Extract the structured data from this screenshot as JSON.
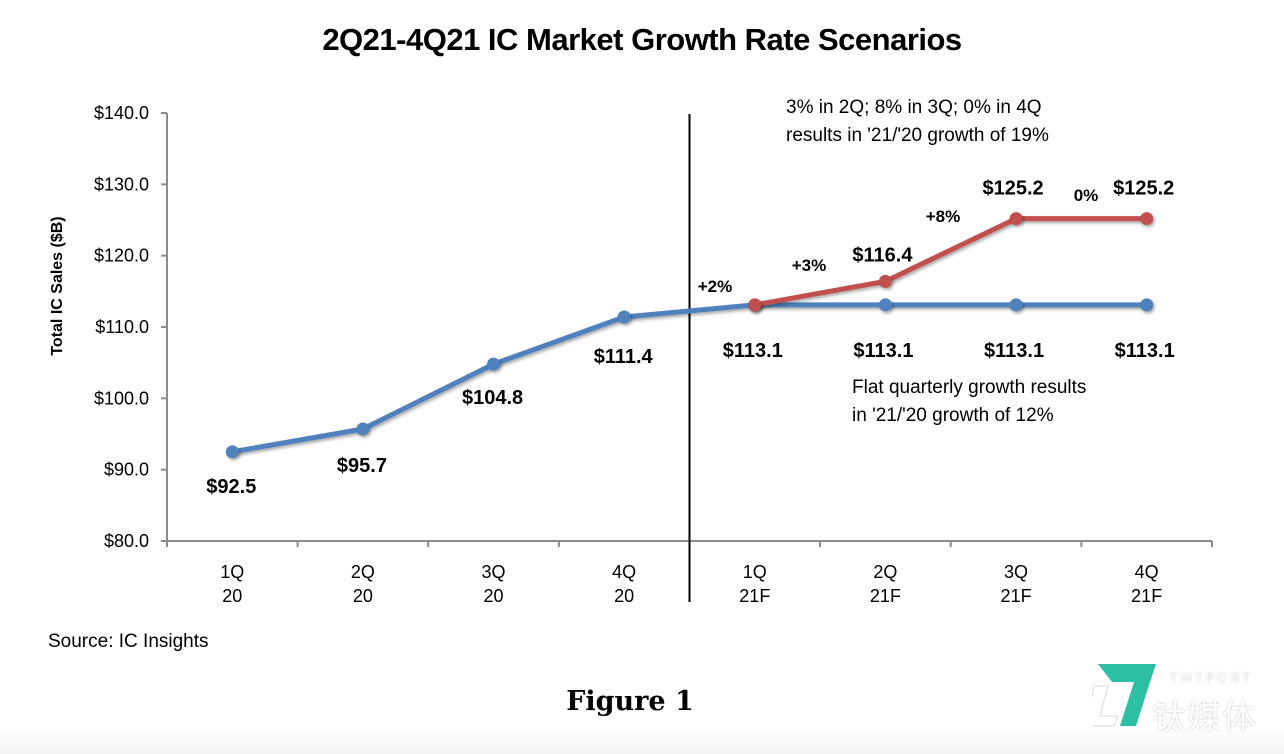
{
  "chart_data": {
    "type": "line",
    "title": "2Q21-4Q21 IC Market Growth Rate Scenarios",
    "xlabel": "",
    "ylabel": "Total IC Sales ($B)",
    "ylim": [
      80,
      140
    ],
    "yticks": [
      "$80.0",
      "$90.0",
      "$100.0",
      "$110.0",
      "$120.0",
      "$130.0",
      "$140.0"
    ],
    "ytick_values": [
      80,
      90,
      100,
      110,
      120,
      130,
      140
    ],
    "categories": [
      {
        "line1": "1Q",
        "line2": "20"
      },
      {
        "line1": "2Q",
        "line2": "20"
      },
      {
        "line1": "3Q",
        "line2": "20"
      },
      {
        "line1": "4Q",
        "line2": "20"
      },
      {
        "line1": "1Q",
        "line2": "21F"
      },
      {
        "line1": "2Q",
        "line2": "21F"
      },
      {
        "line1": "3Q",
        "line2": "21F"
      },
      {
        "line1": "4Q",
        "line2": "21F"
      }
    ],
    "grid": false,
    "legend": "none",
    "divider_after_category_index": 3,
    "series": [
      {
        "name": "Flat quarterly growth",
        "color": "#4f81bd",
        "values": [
          92.5,
          95.7,
          104.8,
          111.4,
          113.1,
          113.1,
          113.1,
          113.1
        ],
        "labels": [
          "$92.5",
          "$95.7",
          "$104.8",
          "$111.4",
          "$113.1",
          "$113.1",
          "$113.1",
          "$113.1"
        ]
      },
      {
        "name": "3%/8%/0% growth scenario",
        "color": "#c0504d",
        "values": [
          null,
          null,
          null,
          null,
          113.1,
          116.4,
          125.2,
          125.2
        ],
        "labels": [
          null,
          null,
          null,
          null,
          null,
          "$116.4",
          "$125.2",
          "$125.2"
        ]
      }
    ],
    "growth_labels": [
      "+2%",
      "+3%",
      "+8%",
      "0%"
    ],
    "annotations": [
      {
        "line1": "3% in 2Q; 8% in 3Q; 0% in 4Q",
        "line2": "results in '21/'20 growth of 19%"
      },
      {
        "line1": "Flat quarterly growth results",
        "line2": "in '21/'20 growth of 12%"
      }
    ]
  },
  "source": "Source:  IC Insights",
  "figure_caption": "Figure 1",
  "watermark": {
    "text_en": "TMTPOST",
    "text_cn": "钛媒体",
    "color": "#2bbfa4"
  }
}
